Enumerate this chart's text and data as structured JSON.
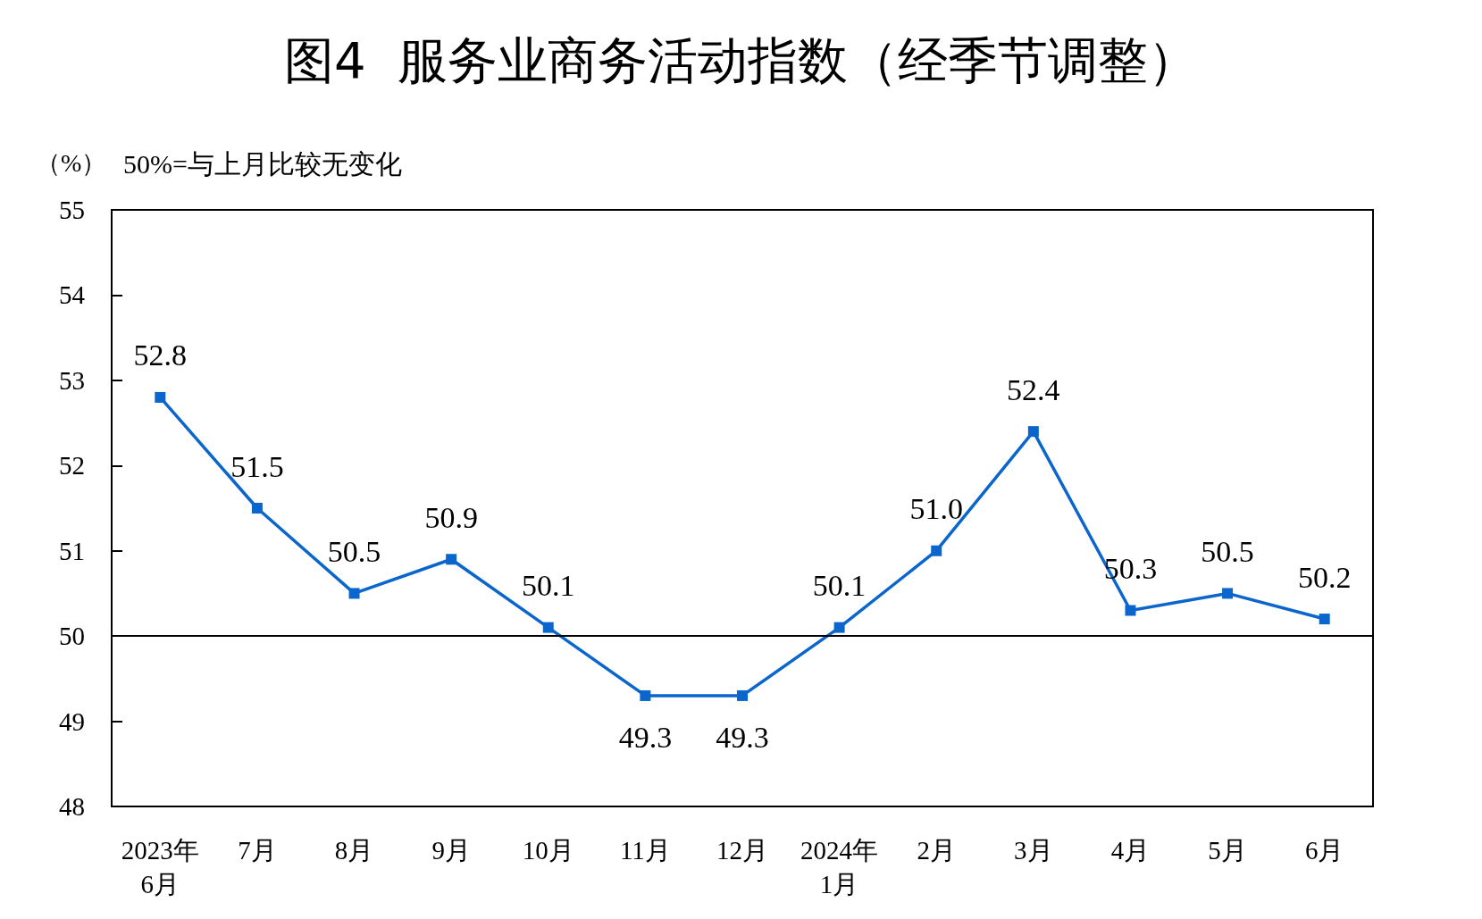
{
  "chart_data": {
    "type": "line",
    "title": "图4  服务业商务活动指数（经季节调整）",
    "ylabel": "（%）",
    "annotations": [
      "50%=与上月比较无变化"
    ],
    "categories": [
      "2023年\n6月",
      "7月",
      "8月",
      "9月",
      "10月",
      "11月",
      "12月",
      "2024年\n1月",
      "2月",
      "3月",
      "4月",
      "5月",
      "6月"
    ],
    "series": [
      {
        "color": "#0a66cc",
        "values": [
          52.8,
          51.5,
          50.5,
          50.9,
          50.1,
          49.3,
          49.3,
          50.1,
          51.0,
          52.4,
          50.3,
          50.5,
          50.2
        ]
      }
    ],
    "value_labels": [
      "52.8",
      "51.5",
      "50.5",
      "50.9",
      "50.1",
      "49.3",
      "49.3",
      "50.1",
      "51.0",
      "52.4",
      "50.3",
      "50.5",
      "50.2"
    ],
    "ylim": [
      48,
      55
    ],
    "yticks": [
      48,
      49,
      50,
      51,
      52,
      53,
      54,
      55
    ],
    "marker": "square",
    "line_style": "solid",
    "ref_lines": [
      {
        "axis": "y",
        "value": 50,
        "color": "#000000"
      }
    ]
  }
}
